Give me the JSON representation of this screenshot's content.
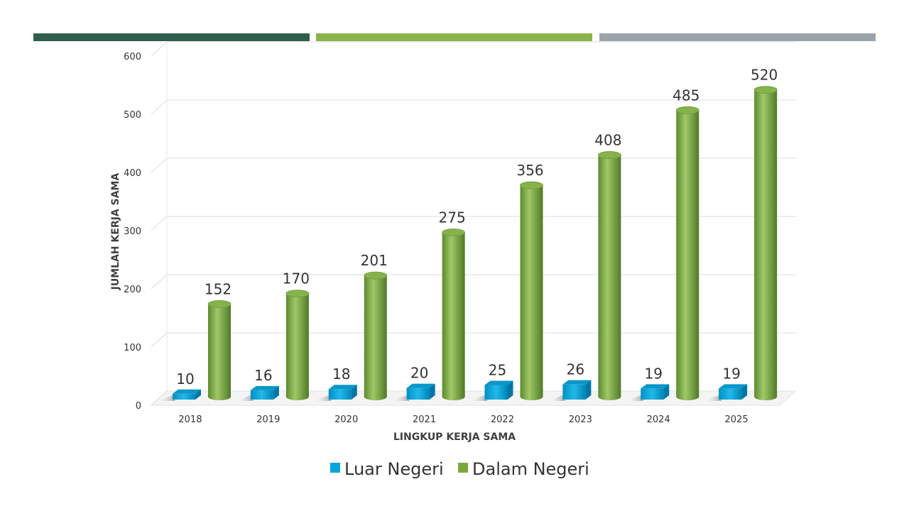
{
  "colors": {
    "band1": "#2f5f4c",
    "band2": "#8ab34a",
    "band3": "#99a3ab",
    "luar": "#00a6dc",
    "dalam": "#7aa83f"
  },
  "chart_data": {
    "type": "bar",
    "style": "3d-cylinder",
    "categories": [
      "2018",
      "2019",
      "2020",
      "2021",
      "2022",
      "2023",
      "2024",
      "2025"
    ],
    "series": [
      {
        "name": "Luar Negeri",
        "shape": "box",
        "color": "#00a6dc",
        "values": [
          10,
          16,
          18,
          20,
          25,
          26,
          19,
          19
        ]
      },
      {
        "name": "Dalam Negeri",
        "shape": "cylinder",
        "color": "#7aa83f",
        "values": [
          152,
          170,
          201,
          275,
          356,
          408,
          485,
          520
        ]
      }
    ],
    "xlabel": "LINGKUP KERJA SAMA",
    "ylabel": "JUMLAH KERJA SAMA",
    "ylim": [
      0,
      600
    ],
    "yticks": [
      0,
      100,
      200,
      300,
      400,
      500,
      600
    ],
    "grid": true,
    "legend": "bottom",
    "data_labels": true
  }
}
